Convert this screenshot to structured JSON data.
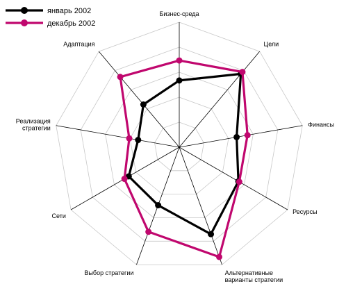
{
  "chart_data": {
    "type": "radar",
    "categories": [
      [
        "Бизнес-среда"
      ],
      [
        "Цели"
      ],
      [
        "Финансы"
      ],
      [
        "Ресурсы"
      ],
      [
        "Альтернативные",
        "варианты стратегии"
      ],
      [
        "Выбор стратегии"
      ],
      [
        "Сети"
      ],
      [
        "Реализация",
        "стратегии"
      ],
      [
        "Адаптация"
      ]
    ],
    "rlim": [
      0,
      5
    ],
    "grid": true,
    "legend_position": "top-left",
    "series": [
      {
        "name": "январь 2002",
        "color": "#000000",
        "values": [
          2.67,
          3.83,
          2.33,
          2.73,
          3.7,
          2.47,
          2.33,
          1.67,
          2.23
        ]
      },
      {
        "name": "декабрь 2002",
        "color": "#c0076e",
        "values": [
          3.47,
          3.93,
          2.77,
          2.77,
          4.67,
          3.6,
          2.53,
          2.03,
          3.67
        ]
      }
    ]
  }
}
